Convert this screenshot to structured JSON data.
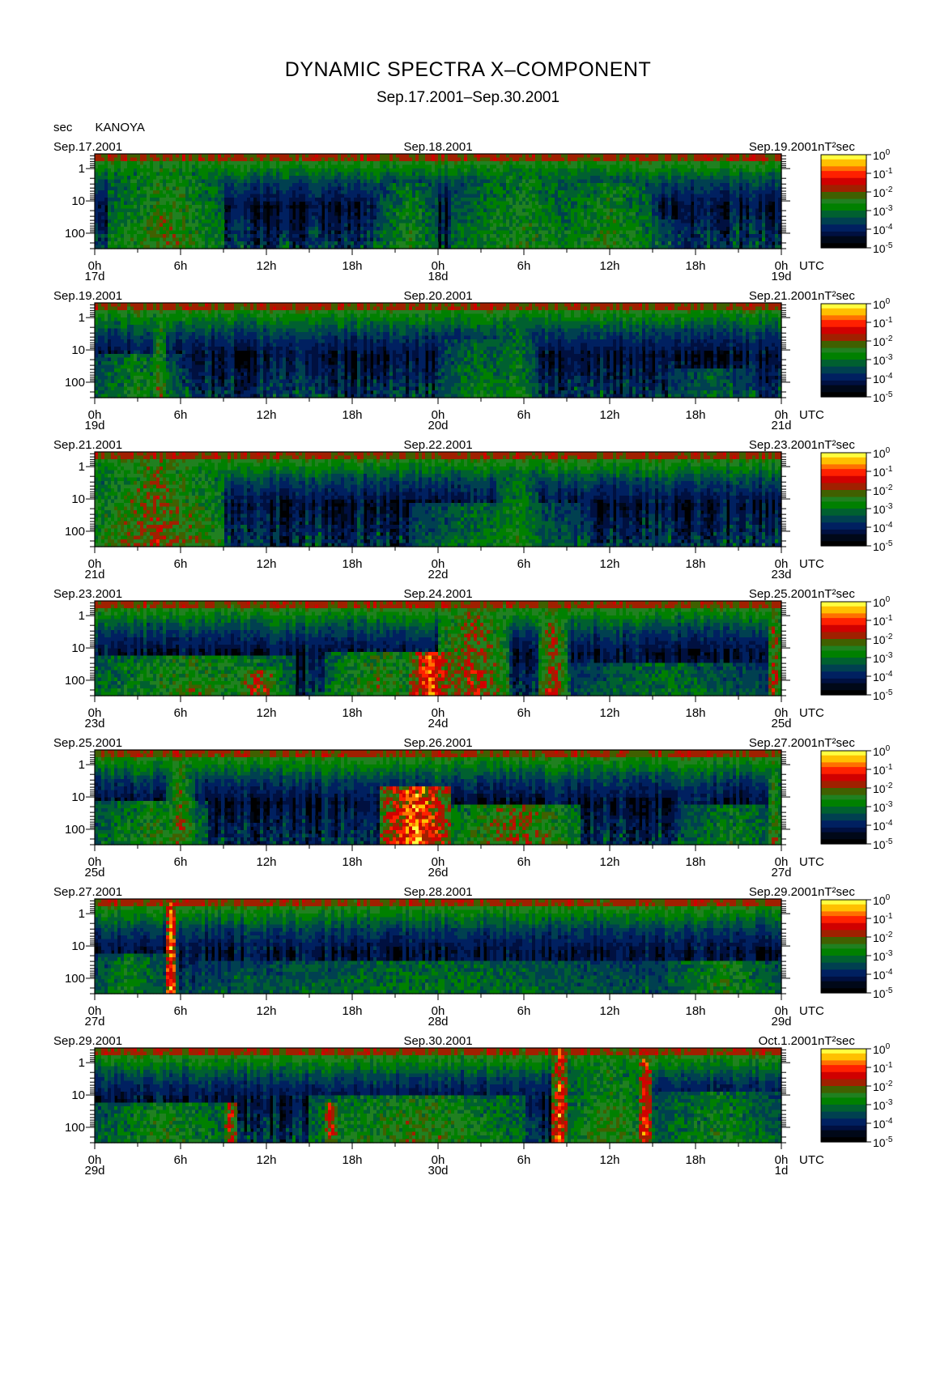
{
  "title": "DYNAMIC SPECTRA X–COMPONENT",
  "subtitle": "Sep.17.2001–Sep.30.2001",
  "station": "KANOYA",
  "yaxis_unit": "sec",
  "colorbar": {
    "unit": "nT²sec",
    "ticks": [
      {
        "base": "10",
        "exp": "0"
      },
      {
        "base": "10",
        "exp": "-1"
      },
      {
        "base": "10",
        "exp": "-2"
      },
      {
        "base": "10",
        "exp": "-3"
      },
      {
        "base": "10",
        "exp": "-4"
      },
      {
        "base": "10",
        "exp": "-5"
      }
    ],
    "colors": [
      "#ffff40",
      "#ffc000",
      "#ff7000",
      "#ff2000",
      "#d00000",
      "#a02000",
      "#406000",
      "#208020",
      "#008000",
      "#006030",
      "#004050",
      "#002060",
      "#001040",
      "#000818",
      "#000000"
    ]
  },
  "chart_data": [
    {
      "type": "heatmap",
      "date_left": "Sep.17.2001",
      "date_mid": "Sep.18.2001",
      "date_right": "Sep.19.2001",
      "x_ticks": [
        "0h",
        "6h",
        "12h",
        "18h",
        "0h",
        "6h",
        "12h",
        "18h",
        "0h"
      ],
      "day_labels": [
        "17d",
        "18d",
        "19d"
      ],
      "y_ticks": [
        "1",
        "10",
        "100"
      ],
      "x_unit": "UTC",
      "ylim": [
        300,
        0.35
      ],
      "yscale": "log",
      "events": [
        {
          "t": 1,
          "w": 8,
          "top": 0.02,
          "p": 0.55
        },
        {
          "t": 20,
          "w": 4,
          "top": 0.3,
          "p": 0.5
        },
        {
          "t": 25,
          "w": 10,
          "top": 0.2,
          "p": 0.5
        },
        {
          "t": 33,
          "w": 6,
          "top": 0.3,
          "p": 0.55
        },
        {
          "t": 38,
          "w": 3,
          "top": 0.7,
          "p": 0.35
        }
      ]
    },
    {
      "type": "heatmap",
      "date_left": "Sep.19.2001",
      "date_mid": "Sep.20.2001",
      "date_right": "Sep.21.2001",
      "x_ticks": [
        "0h",
        "6h",
        "12h",
        "18h",
        "0h",
        "6h",
        "12h",
        "18h",
        "0h"
      ],
      "day_labels": [
        "19d",
        "20d",
        "21d"
      ],
      "y_ticks": [
        "1",
        "10",
        "100"
      ],
      "x_unit": "UTC",
      "ylim": [
        300,
        0.35
      ],
      "yscale": "log",
      "events": [
        {
          "t": 0,
          "w": 6,
          "top": 0.55,
          "p": 0.5
        },
        {
          "t": 4,
          "w": 1,
          "top": 0.1,
          "p": 0.6
        },
        {
          "t": 24,
          "w": 6,
          "top": 0.4,
          "p": 0.45
        },
        {
          "t": 28,
          "w": 3,
          "top": 0.2,
          "p": 0.45
        },
        {
          "t": 40,
          "w": 6,
          "top": 0.7,
          "p": 0.4
        }
      ]
    },
    {
      "type": "heatmap",
      "date_left": "Sep.21.2001",
      "date_mid": "Sep.22.2001",
      "date_right": "Sep.23.2001",
      "x_ticks": [
        "0h",
        "6h",
        "12h",
        "18h",
        "0h",
        "6h",
        "12h",
        "18h",
        "0h"
      ],
      "day_labels": [
        "21d",
        "22d",
        "23d"
      ],
      "y_ticks": [
        "1",
        "10",
        "100"
      ],
      "x_unit": "UTC",
      "ylim": [
        300,
        0.35
      ],
      "yscale": "log",
      "events": [
        {
          "t": 0,
          "w": 9,
          "top": 0.02,
          "p": 0.65
        },
        {
          "t": 22,
          "w": 12,
          "top": 0.55,
          "p": 0.45
        },
        {
          "t": 28,
          "w": 3,
          "top": 0.25,
          "p": 0.5
        }
      ]
    },
    {
      "type": "heatmap",
      "date_left": "Sep.23.2001",
      "date_mid": "Sep.24.2001",
      "date_right": "Sep.25.2001",
      "x_ticks": [
        "0h",
        "6h",
        "12h",
        "18h",
        "0h",
        "6h",
        "12h",
        "18h",
        "0h"
      ],
      "day_labels": [
        "23d",
        "24d",
        "25d"
      ],
      "y_ticks": [
        "1",
        "10",
        "100"
      ],
      "x_unit": "UTC",
      "ylim": [
        300,
        0.35
      ],
      "yscale": "log",
      "events": [
        {
          "t": 0,
          "w": 14,
          "top": 0.6,
          "p": 0.6
        },
        {
          "t": 10,
          "w": 3,
          "top": 0.75,
          "p": 0.8
        },
        {
          "t": 16,
          "w": 8,
          "top": 0.55,
          "p": 0.6
        },
        {
          "t": 22,
          "w": 3,
          "top": 0.55,
          "p": 0.95
        },
        {
          "t": 24,
          "w": 5,
          "top": 0.02,
          "p": 0.7
        },
        {
          "t": 31,
          "w": 2,
          "top": 0.02,
          "p": 0.7
        },
        {
          "t": 33,
          "w": 14,
          "top": 0.65,
          "p": 0.45
        },
        {
          "t": 47,
          "w": 1,
          "top": 0.02,
          "p": 0.7
        }
      ]
    },
    {
      "type": "heatmap",
      "date_left": "Sep.25.2001",
      "date_mid": "Sep.26.2001",
      "date_right": "Sep.27.2001",
      "x_ticks": [
        "0h",
        "6h",
        "12h",
        "18h",
        "0h",
        "6h",
        "12h",
        "18h",
        "0h"
      ],
      "day_labels": [
        "25d",
        "26d",
        "27d"
      ],
      "y_ticks": [
        "1",
        "10",
        "100"
      ],
      "x_unit": "UTC",
      "ylim": [
        300,
        0.35
      ],
      "yscale": "log",
      "events": [
        {
          "t": 0,
          "w": 8,
          "top": 0.55,
          "p": 0.55
        },
        {
          "t": 5,
          "w": 2,
          "top": 0.02,
          "p": 0.6
        },
        {
          "t": 20,
          "w": 5,
          "top": 0.4,
          "p": 1.0
        },
        {
          "t": 25,
          "w": 9,
          "top": 0.6,
          "p": 0.7
        },
        {
          "t": 41,
          "w": 7,
          "top": 0.6,
          "p": 0.5
        },
        {
          "t": 47,
          "w": 1,
          "top": 0.1,
          "p": 0.6
        }
      ]
    },
    {
      "type": "heatmap",
      "date_left": "Sep.27.2001",
      "date_mid": "Sep.28.2001",
      "date_right": "Sep.29.2001",
      "x_ticks": [
        "0h",
        "6h",
        "12h",
        "18h",
        "0h",
        "6h",
        "12h",
        "18h",
        "0h"
      ],
      "day_labels": [
        "27d",
        "28d",
        "29d"
      ],
      "y_ticks": [
        "1",
        "10",
        "100"
      ],
      "x_unit": "UTC",
      "ylim": [
        300,
        0.35
      ],
      "yscale": "log",
      "events": [
        {
          "t": 0,
          "w": 5,
          "top": 0.6,
          "p": 0.5
        },
        {
          "t": 5,
          "w": 0.7,
          "top": 0.0,
          "p": 1.0
        },
        {
          "t": 7,
          "w": 33,
          "top": 0.65,
          "p": 0.45
        },
        {
          "t": 40,
          "w": 8,
          "top": 0.65,
          "p": 0.55
        }
      ]
    },
    {
      "type": "heatmap",
      "date_left": "Sep.29.2001",
      "date_mid": "Sep.30.2001",
      "date_right": "Oct.1.2001",
      "x_ticks": [
        "0h",
        "6h",
        "12h",
        "18h",
        "0h",
        "6h",
        "12h",
        "18h",
        "0h"
      ],
      "day_labels": [
        "29d",
        "30d",
        "1d"
      ],
      "y_ticks": [
        "1",
        "10",
        "100"
      ],
      "x_unit": "UTC",
      "ylim": [
        300,
        0.35
      ],
      "yscale": "log",
      "events": [
        {
          "t": 0,
          "w": 10,
          "top": 0.6,
          "p": 0.55
        },
        {
          "t": 9,
          "w": 1,
          "top": 0.6,
          "p": 0.85
        },
        {
          "t": 15,
          "w": 15,
          "top": 0.5,
          "p": 0.6
        },
        {
          "t": 16,
          "w": 1,
          "top": 0.6,
          "p": 0.85
        },
        {
          "t": 32,
          "w": 1,
          "top": 0.0,
          "p": 0.9
        },
        {
          "t": 33,
          "w": 6,
          "top": 0.1,
          "p": 0.55
        },
        {
          "t": 38,
          "w": 1,
          "top": 0.0,
          "p": 0.9
        },
        {
          "t": 39,
          "w": 9,
          "top": 0.45,
          "p": 0.5
        }
      ]
    }
  ]
}
